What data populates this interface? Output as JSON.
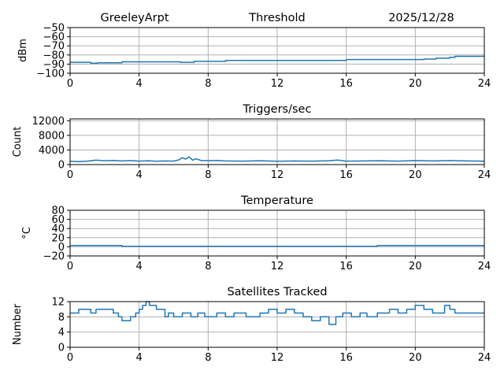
{
  "header": {
    "station": "GreeleyArpt",
    "panel_title": "Threshold",
    "date": "2025/12/28"
  },
  "colors": {
    "series": "#1f77b4",
    "grid": "#b0b0b0"
  },
  "chart_data": [
    {
      "type": "line",
      "title": "Threshold",
      "ylabel": "dBm",
      "xlim": [
        0,
        24
      ],
      "ylim": [
        -100,
        -50
      ],
      "xticks": [
        0,
        4,
        8,
        12,
        16,
        20,
        24
      ],
      "yticks": [
        -100,
        -90,
        -80,
        -70,
        -60,
        -50
      ],
      "grid": true,
      "series": [
        {
          "x": [
            0,
            1.2,
            1.2,
            1.6,
            1.6,
            3.0,
            3.0,
            6.4,
            6.4,
            7.2,
            7.2,
            9.0,
            9.0,
            16.0,
            16.0,
            20.5,
            20.5,
            21.2,
            21.2,
            22.0,
            22.0,
            22.3,
            22.3,
            24
          ],
          "y": [
            -88,
            -88,
            -89,
            -89,
            -88.5,
            -88.5,
            -87.5,
            -87.5,
            -88,
            -88,
            -87,
            -87,
            -86,
            -86,
            -85,
            -85,
            -84.5,
            -84.5,
            -83.5,
            -83.5,
            -82.5,
            -82.5,
            -81.5,
            -81.5
          ]
        }
      ]
    },
    {
      "type": "line",
      "title": "Triggers/sec",
      "ylabel": "Count",
      "xlim": [
        0,
        24
      ],
      "ylim": [
        0,
        12500
      ],
      "xticks": [
        0,
        4,
        8,
        12,
        16,
        20,
        24
      ],
      "yticks": [
        0,
        4000,
        8000,
        12000
      ],
      "grid": true,
      "series": [
        {
          "x": [
            0,
            0.5,
            1.0,
            1.5,
            2.0,
            2.5,
            3.0,
            3.5,
            4.0,
            4.5,
            5.0,
            5.5,
            6.0,
            6.3,
            6.5,
            6.7,
            6.9,
            7.1,
            7.3,
            7.6,
            8.0,
            8.5,
            9.0,
            10.0,
            11.0,
            12.0,
            13.0,
            14.0,
            15.0,
            15.5,
            16.0,
            17.0,
            18.0,
            19.0,
            20.0,
            21.0,
            22.0,
            23.0,
            24.0
          ],
          "y": [
            900,
            800,
            950,
            1200,
            1050,
            1150,
            1000,
            1100,
            950,
            1050,
            900,
            1000,
            950,
            1300,
            1900,
            1500,
            2100,
            1200,
            1600,
            1100,
            1050,
            1150,
            1000,
            950,
            1050,
            900,
            1000,
            950,
            1050,
            1250,
            950,
            1000,
            1050,
            950,
            1100,
            1000,
            1100,
            1000,
            950
          ]
        }
      ]
    },
    {
      "type": "line",
      "title": "Temperature",
      "ylabel": "°C",
      "xlim": [
        0,
        24
      ],
      "ylim": [
        -20,
        80
      ],
      "xticks": [
        0,
        4,
        8,
        12,
        16,
        20,
        24
      ],
      "yticks": [
        -20,
        0,
        20,
        40,
        60,
        80
      ],
      "grid": true,
      "series": [
        {
          "x": [
            0,
            3.0,
            3.0,
            17.8,
            17.8,
            24
          ],
          "y": [
            3,
            3,
            1,
            1,
            3,
            3
          ]
        }
      ]
    },
    {
      "type": "line",
      "title": "Satellites Tracked",
      "ylabel": "Number",
      "xlim": [
        0,
        24
      ],
      "ylim": [
        0,
        12
      ],
      "xticks": [
        0,
        4,
        8,
        12,
        16,
        20,
        24
      ],
      "yticks": [
        0,
        4,
        8,
        12
      ],
      "grid": true,
      "series": [
        {
          "x": [
            0,
            0.5,
            0.5,
            1.2,
            1.2,
            1.5,
            1.5,
            2.5,
            2.5,
            2.8,
            2.8,
            3.0,
            3.0,
            3.5,
            3.5,
            3.8,
            3.8,
            4.0,
            4.0,
            4.2,
            4.2,
            4.4,
            4.4,
            4.6,
            4.6,
            5.0,
            5.0,
            5.5,
            5.5,
            5.7,
            5.7,
            6.0,
            6.0,
            6.5,
            6.5,
            7.0,
            7.0,
            7.4,
            7.4,
            7.8,
            7.8,
            8.5,
            8.5,
            9.0,
            9.0,
            9.5,
            9.5,
            10.2,
            10.2,
            11.0,
            11.0,
            11.5,
            11.5,
            12.0,
            12.0,
            12.5,
            12.5,
            13.0,
            13.0,
            13.5,
            13.5,
            14.0,
            14.0,
            14.5,
            14.5,
            15.0,
            15.0,
            15.4,
            15.4,
            15.8,
            15.8,
            16.3,
            16.3,
            16.8,
            16.8,
            17.2,
            17.2,
            17.8,
            17.8,
            18.5,
            18.5,
            19.0,
            19.0,
            19.5,
            19.5,
            20.0,
            20.0,
            20.5,
            20.5,
            21.0,
            21.0,
            21.7,
            21.7,
            22.0,
            22.0,
            22.3,
            22.3,
            23.0,
            23.0,
            24
          ],
          "y": [
            9,
            9,
            10,
            10,
            9,
            9,
            10,
            10,
            9,
            9,
            8,
            8,
            7,
            7,
            8,
            8,
            9,
            9,
            10,
            10,
            11,
            11,
            12,
            12,
            11,
            11,
            10,
            10,
            8,
            8,
            9,
            9,
            8,
            8,
            9,
            9,
            8,
            8,
            9,
            9,
            8,
            8,
            9,
            9,
            8,
            8,
            9,
            9,
            8,
            8,
            9,
            9,
            10,
            10,
            9,
            9,
            10,
            10,
            9,
            9,
            8,
            8,
            7,
            7,
            8,
            8,
            6,
            6,
            8,
            8,
            9,
            9,
            8,
            8,
            9,
            9,
            8,
            8,
            9,
            9,
            10,
            10,
            9,
            9,
            10,
            10,
            11,
            11,
            10,
            10,
            9,
            9,
            11,
            11,
            10,
            10,
            9,
            9,
            9,
            9
          ]
        }
      ]
    }
  ]
}
